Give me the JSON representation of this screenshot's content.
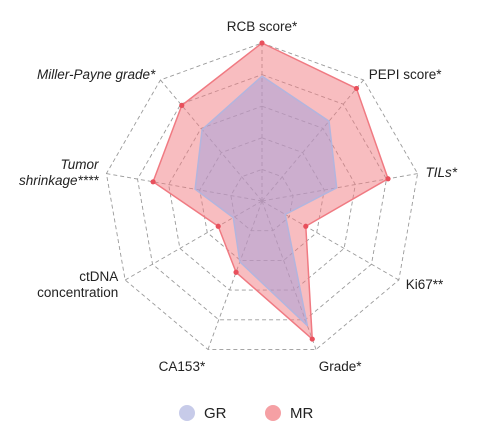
{
  "chart_data": {
    "type": "radar",
    "title": "",
    "axes": [
      {
        "lines": [
          "RCB score*"
        ],
        "italic": false
      },
      {
        "lines": [
          "PEPI score*"
        ],
        "italic": false
      },
      {
        "lines": [
          "TILs*"
        ],
        "italic": true
      },
      {
        "lines": [
          "Ki67**"
        ],
        "italic": false
      },
      {
        "lines": [
          "Grade*"
        ],
        "italic": false
      },
      {
        "lines": [
          "CA153*"
        ],
        "italic": false
      },
      {
        "lines": [
          "ctDNA",
          "concentration"
        ],
        "italic": false
      },
      {
        "lines": [
          "Tumor",
          "shrinkage****"
        ],
        "italic": true
      },
      {
        "lines": [
          "Miller-Payne grade*"
        ],
        "italic": true
      }
    ],
    "rmax": 1,
    "grid_levels": 5,
    "grid": true,
    "legend_position": "bottom",
    "series": [
      {
        "name": "GR",
        "color": "#c7cbe9",
        "values": [
          0.79,
          0.66,
          0.48,
          0.17,
          0.84,
          0.41,
          0.21,
          0.43,
          0.59
        ]
      },
      {
        "name": "MR",
        "color": "#f5a0a4",
        "values": [
          1.0,
          0.93,
          0.81,
          0.32,
          0.93,
          0.48,
          0.32,
          0.7,
          0.79
        ]
      }
    ]
  }
}
